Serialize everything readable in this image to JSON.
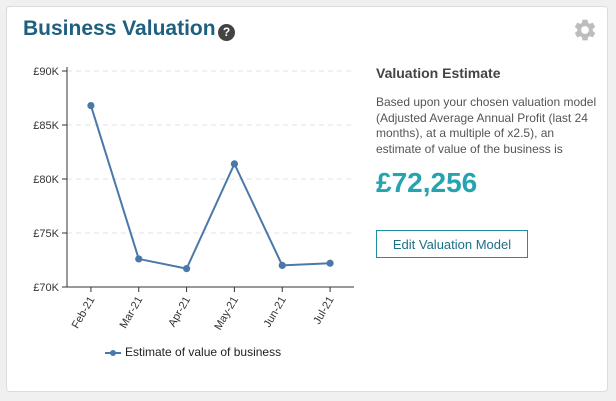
{
  "card": {
    "title": "Business Valuation",
    "help_glyph": "?",
    "help_icon": "question-circle-icon",
    "settings_icon": "gear-icon"
  },
  "side": {
    "heading": "Valuation Estimate",
    "description": "Based upon your chosen valuation model (Adjusted Average Annual Profit (last 24 months), at a multiple of x2.5), an estimate of value of the business is",
    "value": "£72,256",
    "button_label": "Edit Valuation Model"
  },
  "colors": {
    "title": "#1f6080",
    "value": "#25a3b0",
    "series": "#4a78a8",
    "button_border": "#1e8ea0"
  },
  "chart_data": {
    "type": "line",
    "categories": [
      "Feb-21",
      "Mar-21",
      "Apr-21",
      "May-21",
      "Jun-21",
      "Jul-21"
    ],
    "y_ticks": [
      "£90K",
      "£85K",
      "£80K",
      "£75K",
      "£70K"
    ],
    "ylim": [
      70000,
      90000
    ],
    "y_tick_values": [
      90000,
      85000,
      80000,
      75000,
      70000
    ],
    "grid": "horizontal-dashed",
    "legend_position": "bottom",
    "series": [
      {
        "name": "Estimate of value of business",
        "values": [
          86800,
          72600,
          71700,
          81400,
          72000,
          72200
        ]
      }
    ]
  }
}
